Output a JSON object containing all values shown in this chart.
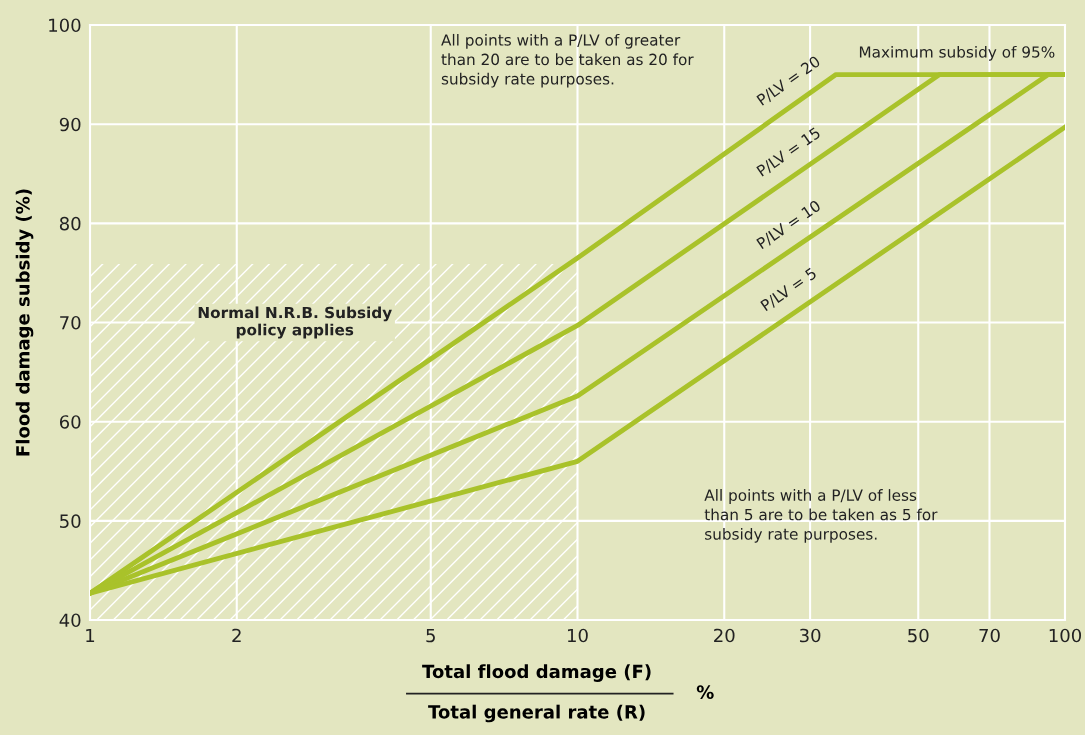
{
  "chart_data": {
    "type": "line",
    "ylabel": "Flood damage subsidy (%)",
    "xlabel": "Total flood damage (F)\nTotal general rate (R)",
    "log": "x",
    "xlim": [
      1,
      100
    ],
    "xticks": [
      1,
      2,
      5,
      10,
      20,
      30,
      50,
      70,
      100
    ],
    "ylim": [
      40,
      100
    ],
    "yticks": [
      40,
      50,
      60,
      70,
      80,
      90,
      100
    ],
    "grid": true,
    "marker": "none",
    "line_style": "solid",
    "series": [
      {
        "type": "area",
        "color": "#ffffff",
        "x": [
          1,
          10
        ],
        "values": [
          75.9,
          75.9
        ]
      },
      {
        "name": "P/LV = 20",
        "color": "#a9c22a",
        "x": [
          1,
          10,
          33.9,
          100
        ],
        "values": [
          42.7,
          76.5,
          95,
          95
        ]
      },
      {
        "name": "P/LV = 15",
        "color": "#a9c22a",
        "x": [
          1,
          10,
          55.3,
          100
        ],
        "values": [
          42.7,
          69.7,
          95,
          95
        ]
      },
      {
        "name": "P/LV = 10",
        "color": "#a9c22a",
        "x": [
          1,
          10,
          92.4,
          100
        ],
        "values": [
          42.7,
          62.6,
          95,
          95
        ]
      },
      {
        "name": "P/LV = 5",
        "color": "#a9c22a",
        "x": [
          1,
          10,
          100
        ],
        "values": [
          42.7,
          56.0,
          89.7
        ]
      }
    ],
    "annotations": [
      "All points with a P/LV of greater\nthan 20 are to be taken as 20 for\nsubsidy rate purposes.",
      {
        "text": "Maximum subsidy of 95%",
        "x": 60,
        "y": 95
      },
      "All points with a P/LV of less\nthan 5 are to be taken as 5 for\nsubsidy rate purposes.",
      "Normal N.R.B. Subsidy\npolicy applies",
      "%"
    ]
  }
}
